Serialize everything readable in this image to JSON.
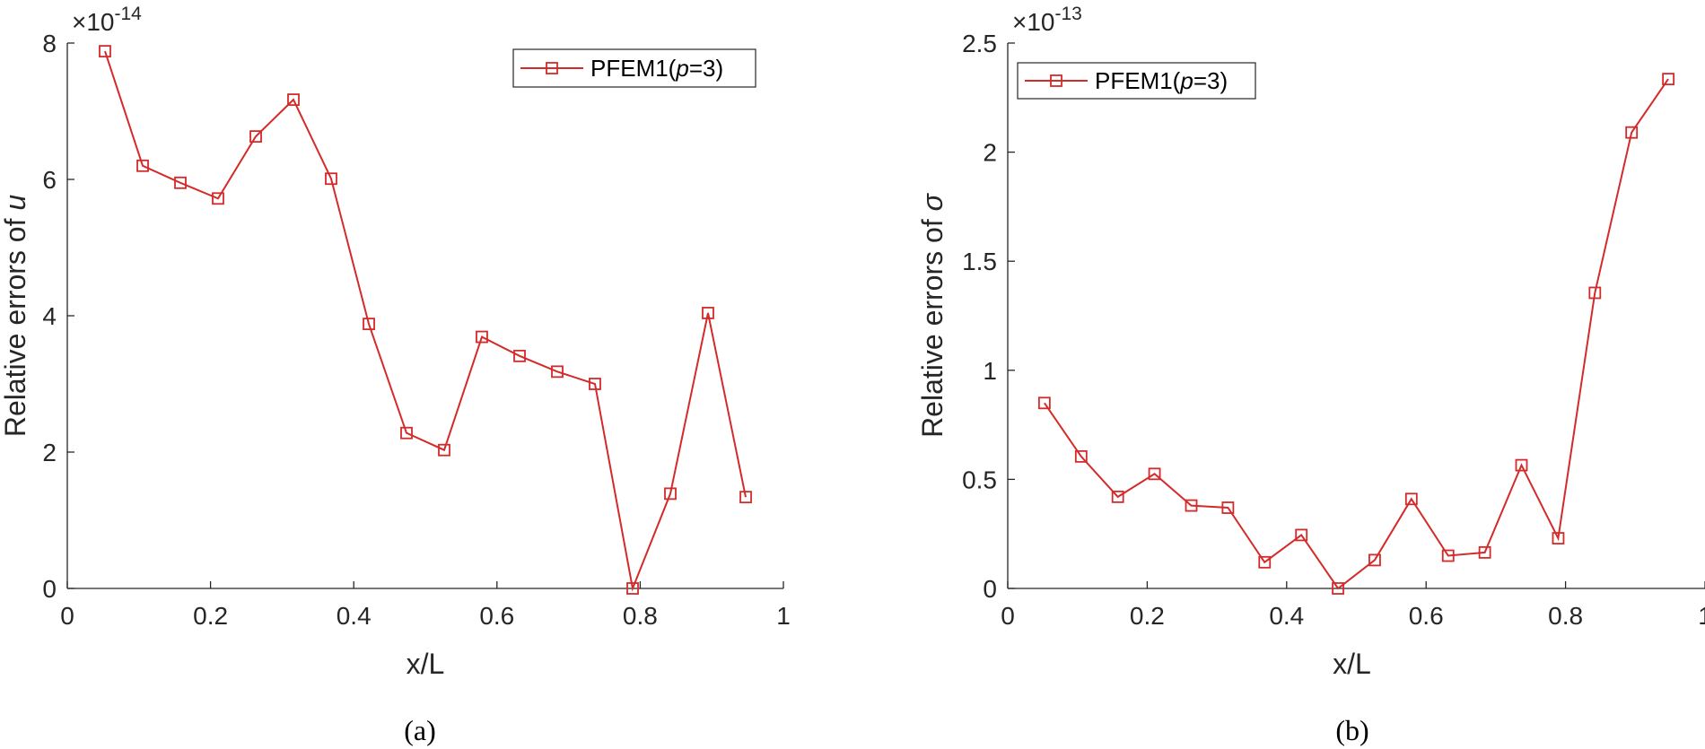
{
  "chart_data": [
    {
      "type": "line",
      "xlabel": "x/L",
      "ylabel_prefix": "Relative errors of ",
      "ylabel_symbol": "u",
      "exponent_base": "×10",
      "exponent": "-14",
      "xlim": [
        0,
        1
      ],
      "ylim": [
        0,
        8
      ],
      "xticks": [
        "0",
        "0.2",
        "0.4",
        "0.6",
        "0.8",
        "1"
      ],
      "yticks": [
        "0",
        "2",
        "4",
        "6",
        "8"
      ],
      "caption": "(a)",
      "legend_location": "top-right",
      "legend_prefix": "PFEM1(",
      "legend_p": "p",
      "legend_suffix": "=3)",
      "marker": "square",
      "color": "#d42a2a",
      "series": [
        {
          "x": [
            0.0526,
            0.1053,
            0.1579,
            0.2105,
            0.2632,
            0.3158,
            0.3684,
            0.4211,
            0.4737,
            0.5263,
            0.5789,
            0.6316,
            0.6842,
            0.7368,
            0.7895,
            0.8421,
            0.8947,
            0.9474
          ],
          "y": [
            7.88,
            6.2,
            5.95,
            5.72,
            6.63,
            7.17,
            6.01,
            3.88,
            2.28,
            2.03,
            3.69,
            3.41,
            3.18,
            3.0,
            0.0,
            1.39,
            4.04,
            1.34
          ]
        }
      ]
    },
    {
      "type": "line",
      "xlabel": "x/L",
      "ylabel_prefix": "Relative errors of ",
      "ylabel_symbol": "σ",
      "exponent_base": "×10",
      "exponent": "-13",
      "xlim": [
        0,
        1
      ],
      "ylim": [
        0,
        2.5
      ],
      "xticks": [
        "0",
        "0.2",
        "0.4",
        "0.6",
        "0.8",
        "1"
      ],
      "yticks": [
        "0",
        "0.5",
        "1",
        "1.5",
        "2",
        "2.5"
      ],
      "caption": "(b)",
      "legend_location": "top-left",
      "legend_prefix": "PFEM1(",
      "legend_p": "p",
      "legend_suffix": "=3)",
      "marker": "square",
      "color": "#d42a2a",
      "series": [
        {
          "x": [
            0.0526,
            0.1053,
            0.1579,
            0.2105,
            0.2632,
            0.3158,
            0.3684,
            0.4211,
            0.4737,
            0.5263,
            0.5789,
            0.6316,
            0.6842,
            0.7368,
            0.7895,
            0.8421,
            0.8947,
            0.9474
          ],
          "y": [
            0.85,
            0.605,
            0.42,
            0.525,
            0.38,
            0.37,
            0.12,
            0.245,
            0.0,
            0.13,
            0.41,
            0.15,
            0.165,
            0.565,
            0.23,
            1.355,
            2.09,
            2.335
          ]
        }
      ]
    }
  ]
}
